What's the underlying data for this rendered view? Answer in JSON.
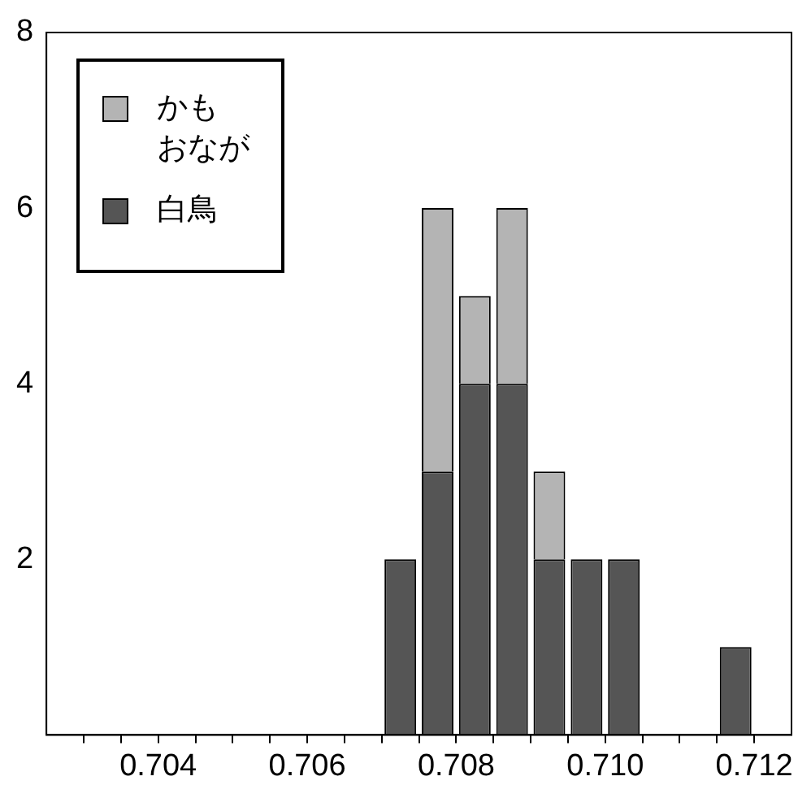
{
  "chart_data": {
    "type": "bar",
    "x": [
      0.70725,
      0.70775,
      0.70825,
      0.70875,
      0.70925,
      0.70975,
      0.71025,
      0.71075,
      0.71125,
      0.71175
    ],
    "stacked": true,
    "series": [
      {
        "name": "白鳥",
        "color": "#555555",
        "values": [
          2,
          3,
          4,
          4,
          2,
          2,
          2,
          0,
          0,
          1
        ]
      },
      {
        "name": "かもおなが",
        "color": "#b4b4b4",
        "values": [
          0,
          3,
          1,
          2,
          1,
          0,
          0,
          0,
          0,
          0
        ]
      }
    ],
    "xlim": [
      0.7025,
      0.7125
    ],
    "xticks": [
      {
        "value": 0.703,
        "label": null
      },
      {
        "value": 0.7035,
        "label": null
      },
      0.704,
      {
        "value": 0.7045,
        "label": null
      },
      {
        "value": 0.705,
        "label": null
      },
      {
        "value": 0.7055,
        "label": null
      },
      0.706,
      {
        "value": 0.7065,
        "label": null
      },
      {
        "value": 0.707,
        "label": null
      },
      {
        "value": 0.7075,
        "label": null
      },
      0.708,
      {
        "value": 0.7085,
        "label": null
      },
      {
        "value": 0.709,
        "label": null
      },
      {
        "value": 0.7095,
        "label": null
      },
      {
        "value": 0.71,
        "label": "0.710"
      },
      {
        "value": 0.7105,
        "label": null
      },
      {
        "value": 0.711,
        "label": null
      },
      {
        "value": 0.7115,
        "label": null
      },
      0.712
    ],
    "ylim": [
      0,
      8
    ],
    "yticks": [
      {
        "value": 0,
        "label": null
      },
      2,
      4,
      6,
      8
    ],
    "grid": false,
    "legend": "top left"
  }
}
